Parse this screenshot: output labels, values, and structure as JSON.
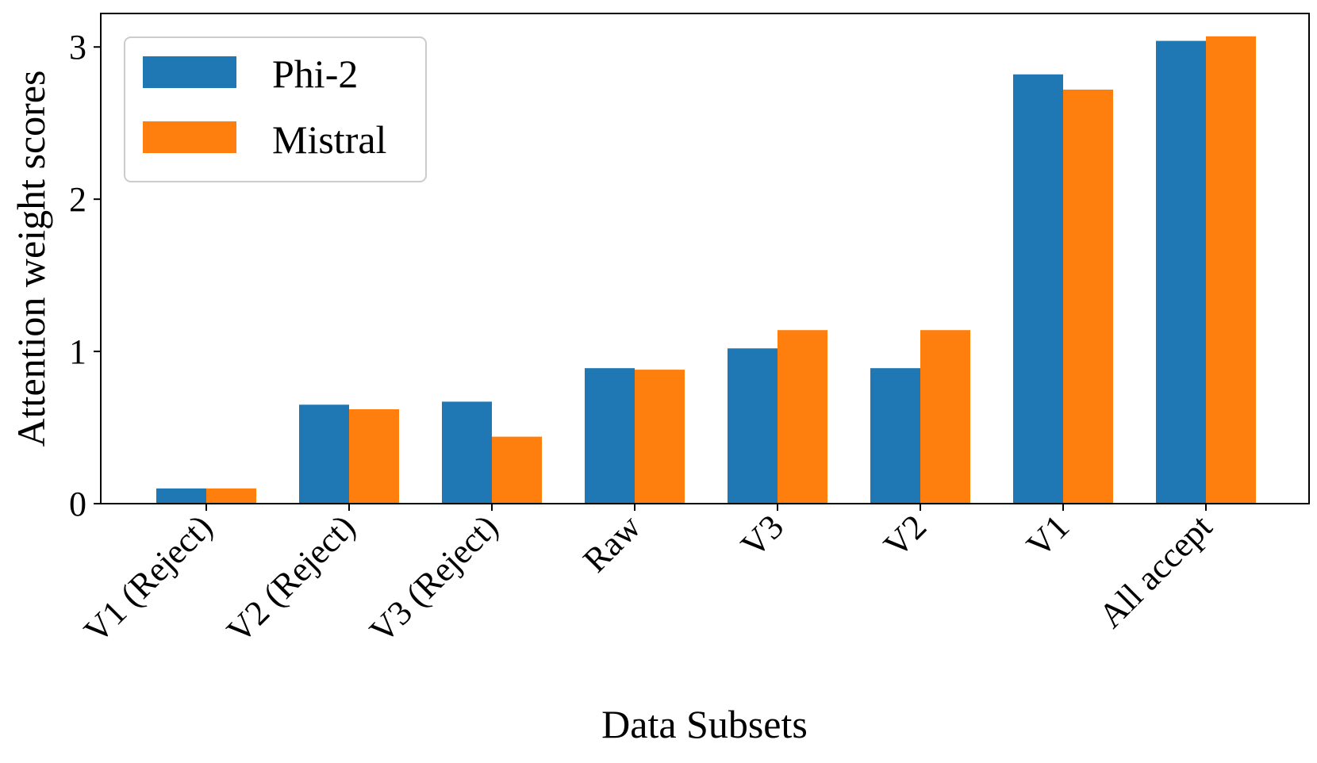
{
  "chart_data": {
    "type": "bar",
    "title": "",
    "xlabel": "Data Subsets",
    "ylabel": "Attention weight scores",
    "categories": [
      "V1 (Reject)",
      "V2 (Reject)",
      "V3 (Reject)",
      "Raw",
      "V3",
      "V2",
      "V1",
      "All accept"
    ],
    "series": [
      {
        "name": "Phi-2",
        "color": "#1f77b4",
        "values": [
          0.1,
          0.65,
          0.67,
          0.89,
          1.02,
          0.89,
          2.82,
          3.04
        ]
      },
      {
        "name": "Mistral",
        "color": "#ff7f0e",
        "values": [
          0.1,
          0.62,
          0.44,
          0.88,
          1.14,
          1.14,
          2.72,
          3.07
        ]
      }
    ],
    "ylim": [
      0,
      3.22
    ],
    "yticks": [
      "0",
      "1",
      "2",
      "3"
    ],
    "grid": false,
    "legend_position": "upper-left"
  }
}
